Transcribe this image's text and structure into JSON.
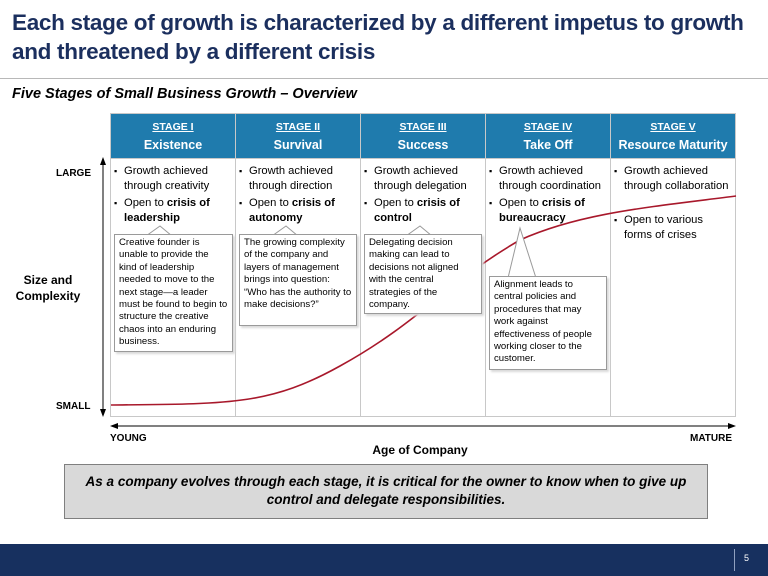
{
  "title": "Each stage of growth is characterized by a different impetus to growth and threatened by a different crisis",
  "subtitle": "Five Stages of Small Business Growth – Overview",
  "stages": [
    {
      "number": "STAGE I",
      "name": "Existence",
      "bullet1": "Growth achieved through creativity",
      "bullet2_pre": "Open to ",
      "bullet2_bold": "crisis of leadership",
      "callout": "Creative founder is unable to provide the kind of leadership needed to move to the next stage—a leader must be found to begin to structure the creative chaos into an enduring business."
    },
    {
      "number": "STAGE II",
      "name": "Survival",
      "bullet1": "Growth achieved through direction",
      "bullet2_pre": "Open to ",
      "bullet2_bold": "crisis of autonomy",
      "callout": "The growing complexity of the company and layers of management brings into question: “Who has the authority to make decisions?”"
    },
    {
      "number": "STAGE III",
      "name": "Success",
      "bullet1": "Growth achieved through delegation",
      "bullet2_pre": "Open to ",
      "bullet2_bold": "crisis of control",
      "callout": "Delegating decision making can lead to decisions not aligned with the central strategies of the company."
    },
    {
      "number": "STAGE IV",
      "name": "Take Off",
      "bullet1": "Growth achieved through coordination",
      "bullet2_pre": "Open to ",
      "bullet2_bold": "crisis of bureaucracy",
      "callout": "Alignment leads to central policies and procedures that may work against effectiveness of people working closer to the customer."
    },
    {
      "number": "STAGE V",
      "name": "Resource Maturity",
      "bullet1": "Growth achieved through collaboration",
      "bullet2": "Open to various forms of crises"
    }
  ],
  "axes": {
    "y_title": "Size and Complexity",
    "y_high": "LARGE",
    "y_low": "SMALL",
    "x_title": "Age of Company",
    "x_low": "YOUNG",
    "x_high": "MATURE"
  },
  "takeaway": "As a company evolves through each stage, it is critical for the owner to know when to give up control and delegate responsibilities.",
  "page_number": "5",
  "colors": {
    "title": "#1b2f5e",
    "stage_header": "#1f7bad",
    "curve": "#a8182b",
    "footer": "#17305f",
    "takeaway_bg": "#d9d9d9"
  }
}
